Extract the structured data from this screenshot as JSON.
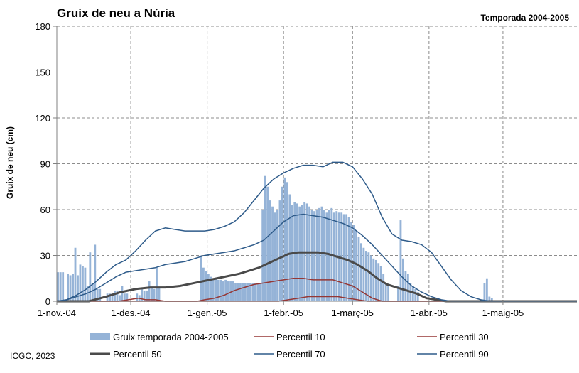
{
  "chart_data": {
    "type": "bar+line",
    "title": "Gruix de neu a Núria",
    "subtitle": "Temporada 2004-2005",
    "ylabel": "Gruix de neu (cm)",
    "ylim": [
      0,
      180
    ],
    "yticks": [
      0,
      30,
      60,
      90,
      120,
      150,
      180
    ],
    "xlim": [
      0,
      211
    ],
    "xticks": [
      {
        "day": 0,
        "label": "1-nov.-04"
      },
      {
        "day": 30,
        "label": "1-des.-04"
      },
      {
        "day": 61,
        "label": "1-gen.-05"
      },
      {
        "day": 92,
        "label": "1-febr.-05"
      },
      {
        "day": 120,
        "label": "1-març-05"
      },
      {
        "day": 151,
        "label": "1-abr.-05"
      },
      {
        "day": 181,
        "label": "1-maig-05"
      }
    ],
    "grid": true,
    "legend_position": "bottom",
    "source": "ICGC, 2023",
    "bar_series": {
      "name": "Gruix temporada 2004-2005",
      "color": "#95b3d7",
      "x_unit": "days since 1-nov.-04",
      "points": [
        [
          0,
          19
        ],
        [
          1,
          19
        ],
        [
          2,
          19
        ],
        [
          3,
          0
        ],
        [
          4,
          18
        ],
        [
          5,
          17
        ],
        [
          6,
          18
        ],
        [
          7,
          35
        ],
        [
          8,
          17
        ],
        [
          9,
          24
        ],
        [
          10,
          23
        ],
        [
          11,
          22
        ],
        [
          12,
          10
        ],
        [
          13,
          32
        ],
        [
          14,
          12
        ],
        [
          15,
          37
        ],
        [
          16,
          8
        ],
        [
          17,
          8
        ],
        [
          20,
          5
        ],
        [
          21,
          5
        ],
        [
          22,
          5
        ],
        [
          23,
          7
        ],
        [
          24,
          7
        ],
        [
          25,
          4
        ],
        [
          26,
          10
        ],
        [
          27,
          5
        ],
        [
          28,
          5
        ],
        [
          32,
          5
        ],
        [
          33,
          4
        ],
        [
          34,
          9
        ],
        [
          35,
          7
        ],
        [
          36,
          7
        ],
        [
          37,
          13
        ],
        [
          38,
          9
        ],
        [
          39,
          8
        ],
        [
          40,
          22
        ],
        [
          41,
          9
        ],
        [
          58,
          30
        ],
        [
          59,
          22
        ],
        [
          60,
          20
        ],
        [
          61,
          18
        ],
        [
          62,
          16
        ],
        [
          63,
          15
        ],
        [
          64,
          15
        ],
        [
          65,
          14
        ],
        [
          66,
          14
        ],
        [
          67,
          13
        ],
        [
          68,
          14
        ],
        [
          69,
          13
        ],
        [
          70,
          13
        ],
        [
          71,
          13
        ],
        [
          72,
          12
        ],
        [
          73,
          12
        ],
        [
          74,
          12
        ],
        [
          75,
          12
        ],
        [
          76,
          12
        ],
        [
          77,
          12
        ],
        [
          78,
          12
        ],
        [
          79,
          12
        ],
        [
          80,
          12
        ],
        [
          81,
          12
        ],
        [
          82,
          12
        ],
        [
          83,
          60
        ],
        [
          84,
          82
        ],
        [
          85,
          75
        ],
        [
          86,
          66
        ],
        [
          87,
          62
        ],
        [
          88,
          58
        ],
        [
          89,
          60
        ],
        [
          90,
          66
        ],
        [
          91,
          75
        ],
        [
          92,
          81
        ],
        [
          93,
          78
        ],
        [
          94,
          70
        ],
        [
          95,
          63
        ],
        [
          96,
          65
        ],
        [
          97,
          64
        ],
        [
          98,
          62
        ],
        [
          99,
          63
        ],
        [
          100,
          65
        ],
        [
          101,
          64
        ],
        [
          102,
          62
        ],
        [
          103,
          60
        ],
        [
          104,
          59
        ],
        [
          105,
          60
        ],
        [
          106,
          61
        ],
        [
          107,
          62
        ],
        [
          108,
          60
        ],
        [
          109,
          58
        ],
        [
          110,
          60
        ],
        [
          111,
          61
        ],
        [
          112,
          58
        ],
        [
          113,
          59
        ],
        [
          114,
          58
        ],
        [
          115,
          58
        ],
        [
          116,
          57
        ],
        [
          117,
          57
        ],
        [
          118,
          55
        ],
        [
          119,
          52
        ],
        [
          120,
          50
        ],
        [
          121,
          46
        ],
        [
          122,
          42
        ],
        [
          123,
          38
        ],
        [
          124,
          35
        ],
        [
          125,
          33
        ],
        [
          126,
          32
        ],
        [
          127,
          30
        ],
        [
          128,
          28
        ],
        [
          129,
          27
        ],
        [
          130,
          25
        ],
        [
          131,
          23
        ],
        [
          132,
          18
        ],
        [
          133,
          12
        ],
        [
          134,
          10
        ],
        [
          138,
          10
        ],
        [
          139,
          53
        ],
        [
          140,
          28
        ],
        [
          141,
          20
        ],
        [
          142,
          18
        ],
        [
          143,
          12
        ],
        [
          144,
          10
        ],
        [
          145,
          8
        ],
        [
          146,
          6
        ],
        [
          173,
          12
        ],
        [
          174,
          15
        ],
        [
          175,
          3
        ],
        [
          176,
          2
        ]
      ]
    },
    "line_series": [
      {
        "name": "Percentil 10",
        "color": "#953735",
        "width": 1.5,
        "points": [
          [
            0,
            0
          ],
          [
            90,
            0
          ],
          [
            94,
            1
          ],
          [
            98,
            2
          ],
          [
            102,
            3
          ],
          [
            106,
            3
          ],
          [
            110,
            3
          ],
          [
            114,
            3
          ],
          [
            118,
            2
          ],
          [
            122,
            1
          ],
          [
            126,
            0
          ],
          [
            211,
            0
          ]
        ]
      },
      {
        "name": "Percentil 30",
        "color": "#953735",
        "width": 1.5,
        "points": [
          [
            0,
            0
          ],
          [
            25,
            0
          ],
          [
            29,
            1
          ],
          [
            33,
            2
          ],
          [
            36,
            1
          ],
          [
            40,
            1
          ],
          [
            44,
            0
          ],
          [
            48,
            0
          ],
          [
            52,
            0
          ],
          [
            57,
            0
          ],
          [
            60,
            1
          ],
          [
            64,
            2
          ],
          [
            68,
            4
          ],
          [
            72,
            7
          ],
          [
            76,
            9
          ],
          [
            80,
            11
          ],
          [
            84,
            12
          ],
          [
            88,
            13
          ],
          [
            92,
            14
          ],
          [
            96,
            15
          ],
          [
            100,
            15
          ],
          [
            104,
            14
          ],
          [
            108,
            14
          ],
          [
            112,
            14
          ],
          [
            116,
            12
          ],
          [
            120,
            10
          ],
          [
            124,
            6
          ],
          [
            128,
            2
          ],
          [
            132,
            0
          ],
          [
            211,
            0
          ]
        ]
      },
      {
        "name": "Percentil 50",
        "color": "#4a4a4a",
        "width": 3,
        "points": [
          [
            0,
            0
          ],
          [
            13,
            0
          ],
          [
            20,
            3
          ],
          [
            26,
            6
          ],
          [
            32,
            8
          ],
          [
            38,
            9
          ],
          [
            44,
            9
          ],
          [
            50,
            10
          ],
          [
            56,
            12
          ],
          [
            62,
            14
          ],
          [
            68,
            16
          ],
          [
            74,
            18
          ],
          [
            78,
            20
          ],
          [
            82,
            22
          ],
          [
            86,
            25
          ],
          [
            90,
            28
          ],
          [
            94,
            31
          ],
          [
            98,
            32
          ],
          [
            102,
            32
          ],
          [
            106,
            32
          ],
          [
            110,
            31
          ],
          [
            114,
            29
          ],
          [
            118,
            27
          ],
          [
            122,
            24
          ],
          [
            126,
            20
          ],
          [
            130,
            15
          ],
          [
            134,
            11
          ],
          [
            138,
            9
          ],
          [
            142,
            7
          ],
          [
            146,
            5
          ],
          [
            150,
            2
          ],
          [
            154,
            1
          ],
          [
            158,
            0
          ],
          [
            211,
            0
          ]
        ]
      },
      {
        "name": "Percentil 70",
        "color": "#2e5b8a",
        "width": 1.5,
        "points": [
          [
            0,
            0
          ],
          [
            4,
            1
          ],
          [
            8,
            3
          ],
          [
            12,
            5
          ],
          [
            16,
            8
          ],
          [
            20,
            12
          ],
          [
            24,
            16
          ],
          [
            28,
            19
          ],
          [
            32,
            20
          ],
          [
            36,
            21
          ],
          [
            40,
            22
          ],
          [
            44,
            24
          ],
          [
            48,
            25
          ],
          [
            52,
            26
          ],
          [
            56,
            28
          ],
          [
            60,
            30
          ],
          [
            64,
            31
          ],
          [
            68,
            32
          ],
          [
            72,
            33
          ],
          [
            76,
            35
          ],
          [
            80,
            37
          ],
          [
            84,
            40
          ],
          [
            88,
            46
          ],
          [
            92,
            52
          ],
          [
            96,
            56
          ],
          [
            100,
            57
          ],
          [
            104,
            56
          ],
          [
            108,
            55
          ],
          [
            112,
            53
          ],
          [
            116,
            51
          ],
          [
            120,
            48
          ],
          [
            124,
            43
          ],
          [
            128,
            37
          ],
          [
            132,
            30
          ],
          [
            136,
            23
          ],
          [
            140,
            16
          ],
          [
            144,
            10
          ],
          [
            148,
            6
          ],
          [
            152,
            3
          ],
          [
            156,
            1
          ],
          [
            160,
            0
          ],
          [
            211,
            0
          ]
        ]
      },
      {
        "name": "Percentil 90",
        "color": "#2e5b8a",
        "width": 1.5,
        "points": [
          [
            0,
            0
          ],
          [
            4,
            1
          ],
          [
            8,
            4
          ],
          [
            12,
            8
          ],
          [
            16,
            13
          ],
          [
            20,
            19
          ],
          [
            24,
            24
          ],
          [
            28,
            27
          ],
          [
            32,
            33
          ],
          [
            36,
            40
          ],
          [
            40,
            46
          ],
          [
            44,
            48
          ],
          [
            48,
            47
          ],
          [
            52,
            46
          ],
          [
            56,
            46
          ],
          [
            60,
            46
          ],
          [
            64,
            47
          ],
          [
            68,
            49
          ],
          [
            72,
            52
          ],
          [
            76,
            58
          ],
          [
            80,
            66
          ],
          [
            84,
            74
          ],
          [
            88,
            80
          ],
          [
            92,
            84
          ],
          [
            96,
            87
          ],
          [
            100,
            89
          ],
          [
            104,
            89
          ],
          [
            108,
            88
          ],
          [
            112,
            91
          ],
          [
            116,
            91
          ],
          [
            120,
            88
          ],
          [
            124,
            80
          ],
          [
            128,
            70
          ],
          [
            132,
            55
          ],
          [
            136,
            44
          ],
          [
            140,
            40
          ],
          [
            144,
            39
          ],
          [
            148,
            37
          ],
          [
            152,
            32
          ],
          [
            156,
            23
          ],
          [
            160,
            14
          ],
          [
            164,
            7
          ],
          [
            168,
            3
          ],
          [
            172,
            1
          ],
          [
            176,
            0
          ],
          [
            211,
            0
          ]
        ]
      }
    ]
  }
}
